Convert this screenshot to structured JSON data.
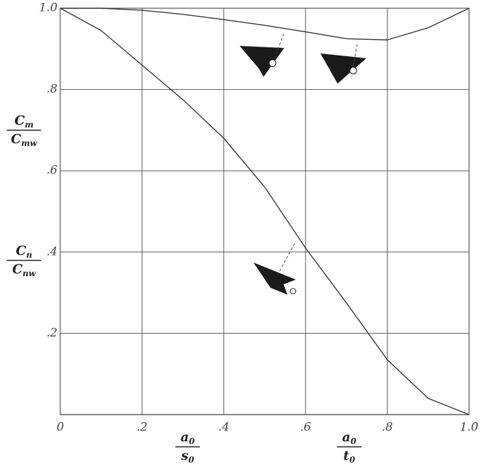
{
  "chart_data": {
    "type": "line",
    "x": [
      0,
      0.1,
      0.2,
      0.3,
      0.4,
      0.5,
      0.6,
      0.7,
      0.8,
      0.9,
      1.0
    ],
    "series": [
      {
        "color": "#333333",
        "values": [
          1.0,
          1.0,
          0.995,
          0.985,
          0.972,
          0.958,
          0.942,
          0.925,
          0.922,
          0.952,
          1.0
        ]
      },
      {
        "color": "#333333",
        "values": [
          1.0,
          0.945,
          0.86,
          0.775,
          0.68,
          0.56,
          0.41,
          0.275,
          0.135,
          0.04,
          0
        ]
      }
    ],
    "xlim": [
      0,
      1.0
    ],
    "ylim": [
      0,
      1.0
    ],
    "xticks": [
      0,
      {
        "value": 0.2,
        "label": ".2"
      },
      {
        "value": 0.4,
        "label": ".4"
      },
      {
        "value": 0.6,
        "label": ".6"
      },
      {
        "value": 0.8,
        "label": ".8"
      },
      {
        "value": 1.0,
        "label": "1.0"
      }
    ],
    "yticks": [
      {
        "value": 0.2,
        "label": ".2"
      },
      {
        "value": 0.4,
        "label": ".4"
      },
      {
        "value": 0.6,
        "label": ".6"
      },
      {
        "value": 0.8,
        "label": ".8"
      },
      {
        "value": 1.0,
        "label": "1.0"
      }
    ],
    "grid": true,
    "y_labels": [
      {
        "num": "C",
        "num_sub": "m",
        "den": "C",
        "den_sub": "mw"
      },
      {
        "num": "C",
        "num_sub": "n",
        "den": "C",
        "den_sub": "nw"
      }
    ],
    "x_labels": [
      {
        "num": "a",
        "num_sub": "0",
        "den": "s",
        "den_sub": "0"
      },
      {
        "num": "a",
        "num_sub": "0",
        "den": "t",
        "den_sub": "0"
      }
    ]
  }
}
